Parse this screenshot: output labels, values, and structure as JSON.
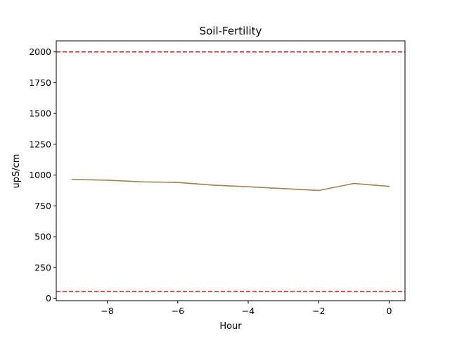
{
  "chart_data": {
    "type": "line",
    "title": "Soil-Fertility",
    "xlabel": "Hour",
    "ylabel": "upS/cm",
    "xlim": [
      -9.45,
      0.45
    ],
    "ylim": [
      -20,
      2090
    ],
    "xticks": [
      -8,
      -6,
      -4,
      -2,
      0
    ],
    "xtick_labels": [
      "−8",
      "−6",
      "−4",
      "−2",
      "0"
    ],
    "yticks": [
      0,
      250,
      500,
      750,
      1000,
      1250,
      1500,
      1750,
      2000
    ],
    "ytick_labels": [
      "0",
      "250",
      "500",
      "750",
      "1000",
      "1250",
      "1500",
      "1750",
      "2000"
    ],
    "grid": false,
    "series": [
      {
        "color": "#9a8550",
        "x": [
          -9,
          -8,
          -7,
          -6,
          -5,
          -4,
          -3,
          -2,
          -1,
          0
        ],
        "y": [
          965,
          958,
          945,
          940,
          918,
          905,
          890,
          875,
          932,
          908
        ]
      }
    ],
    "reference_lines": [
      {
        "y": 2000,
        "color": "#e31a1c",
        "style": "dashed"
      },
      {
        "y": 55,
        "color": "#e31a1c",
        "style": "dashed"
      }
    ]
  }
}
